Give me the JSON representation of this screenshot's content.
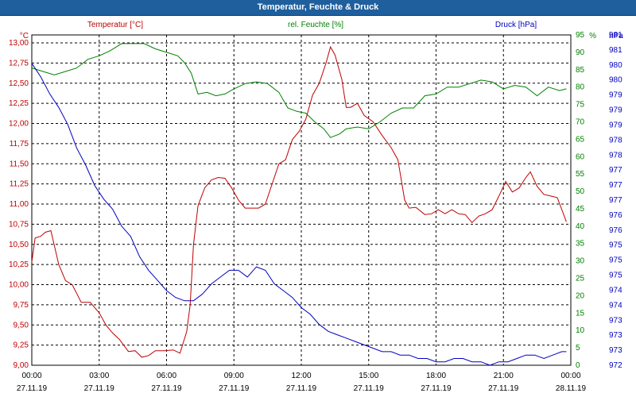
{
  "window": {
    "title": "Temperatur, Feuchte & Druck"
  },
  "chart_data": {
    "type": "line",
    "x_tick_times": [
      "00:00",
      "03:00",
      "06:00",
      "09:00",
      "12:00",
      "15:00",
      "18:00",
      "21:00",
      "00:00"
    ],
    "x_tick_dates": [
      "27.11.19",
      "27.11.19",
      "27.11.19",
      "27.11.19",
      "27.11.19",
      "27.11.19",
      "27.11.19",
      "27.11.19",
      "28.11.19"
    ],
    "xlim": [
      0,
      24
    ],
    "grid": true,
    "axes": {
      "temperature": {
        "label": "Temperatur [°C]",
        "unit": "°C",
        "color": "#c00000",
        "ylim": [
          9.0,
          13.0
        ],
        "ticks": [
          "13,00",
          "12,75",
          "12,50",
          "12,25",
          "12,00",
          "11,75",
          "11,50",
          "11,25",
          "11,00",
          "10,75",
          "10,50",
          "10,25",
          "10,00",
          "9,75",
          "9,50",
          "9,25",
          "9,00"
        ]
      },
      "humidity": {
        "label": "rel. Feuchte [%]",
        "unit": "%",
        "color": "#008000",
        "ylim": [
          0,
          95
        ],
        "ticks": [
          "0",
          "5",
          "10",
          "15",
          "20",
          "25",
          "30",
          "35",
          "40",
          "45",
          "50",
          "55",
          "60",
          "65",
          "70",
          "75",
          "80",
          "85",
          "90",
          "95"
        ]
      },
      "pressure": {
        "label": "Druck [hPa]",
        "unit": "hPa",
        "color": "#0000c0",
        "ticks": [
          "972",
          "973",
          "973",
          "973",
          "974",
          "974",
          "975",
          "975",
          "975",
          "976",
          "976",
          "977",
          "977",
          "977",
          "978",
          "978",
          "979",
          "979",
          "979",
          "980",
          "980",
          "981",
          "981"
        ]
      }
    },
    "series": [
      {
        "name": "Temperatur [°C]",
        "axis": "temperature",
        "color": "#c00000",
        "points": [
          [
            0,
            10.28
          ],
          [
            0.15,
            10.58
          ],
          [
            0.4,
            10.6
          ],
          [
            0.6,
            10.65
          ],
          [
            0.85,
            10.67
          ],
          [
            1.2,
            10.25
          ],
          [
            1.5,
            10.05
          ],
          [
            1.8,
            10.0
          ],
          [
            2.2,
            9.78
          ],
          [
            2.6,
            9.78
          ],
          [
            3.0,
            9.65
          ],
          [
            3.3,
            9.5
          ],
          [
            3.6,
            9.4
          ],
          [
            3.9,
            9.32
          ],
          [
            4.3,
            9.17
          ],
          [
            4.6,
            9.18
          ],
          [
            4.9,
            9.1
          ],
          [
            5.2,
            9.12
          ],
          [
            5.5,
            9.18
          ],
          [
            5.9,
            9.18
          ],
          [
            6.3,
            9.19
          ],
          [
            6.6,
            9.15
          ],
          [
            6.9,
            9.42
          ],
          [
            7.05,
            9.75
          ],
          [
            7.2,
            10.5
          ],
          [
            7.4,
            10.98
          ],
          [
            7.7,
            11.2
          ],
          [
            8.0,
            11.3
          ],
          [
            8.3,
            11.33
          ],
          [
            8.6,
            11.32
          ],
          [
            8.9,
            11.2
          ],
          [
            9.2,
            11.05
          ],
          [
            9.5,
            10.95
          ],
          [
            9.8,
            10.95
          ],
          [
            10.1,
            10.95
          ],
          [
            10.4,
            11.0
          ],
          [
            10.7,
            11.25
          ],
          [
            11.0,
            11.5
          ],
          [
            11.3,
            11.55
          ],
          [
            11.6,
            11.8
          ],
          [
            11.9,
            11.9
          ],
          [
            12.2,
            12.05
          ],
          [
            12.5,
            12.35
          ],
          [
            12.8,
            12.5
          ],
          [
            13.1,
            12.75
          ],
          [
            13.3,
            12.95
          ],
          [
            13.5,
            12.85
          ],
          [
            13.8,
            12.55
          ],
          [
            14.0,
            12.2
          ],
          [
            14.2,
            12.2
          ],
          [
            14.5,
            12.25
          ],
          [
            14.8,
            12.1
          ],
          [
            15.2,
            12.02
          ],
          [
            15.6,
            11.85
          ],
          [
            16.0,
            11.7
          ],
          [
            16.3,
            11.55
          ],
          [
            16.6,
            11.05
          ],
          [
            16.8,
            10.95
          ],
          [
            17.1,
            10.96
          ],
          [
            17.5,
            10.87
          ],
          [
            17.8,
            10.88
          ],
          [
            18.1,
            10.93
          ],
          [
            18.4,
            10.88
          ],
          [
            18.7,
            10.93
          ],
          [
            19.0,
            10.88
          ],
          [
            19.3,
            10.87
          ],
          [
            19.6,
            10.77
          ],
          [
            19.9,
            10.85
          ],
          [
            20.2,
            10.88
          ],
          [
            20.5,
            10.93
          ],
          [
            20.8,
            11.1
          ],
          [
            21.1,
            11.28
          ],
          [
            21.4,
            11.15
          ],
          [
            21.7,
            11.2
          ],
          [
            22.0,
            11.33
          ],
          [
            22.2,
            11.4
          ],
          [
            22.5,
            11.22
          ],
          [
            22.8,
            11.12
          ],
          [
            23.1,
            11.1
          ],
          [
            23.4,
            11.08
          ],
          [
            23.6,
            10.93
          ],
          [
            23.8,
            10.78
          ]
        ]
      },
      {
        "name": "rel. Feuchte [%]",
        "axis": "humidity",
        "color": "#008000",
        "points": [
          [
            0,
            85.5
          ],
          [
            0.5,
            84.5
          ],
          [
            1.0,
            83.5
          ],
          [
            1.5,
            84.5
          ],
          [
            2.0,
            85.5
          ],
          [
            2.5,
            88
          ],
          [
            3.0,
            89
          ],
          [
            3.5,
            90.5
          ],
          [
            4.0,
            92.5
          ],
          [
            4.5,
            92.5
          ],
          [
            5.0,
            92.5
          ],
          [
            5.5,
            91
          ],
          [
            6.0,
            90
          ],
          [
            6.5,
            89
          ],
          [
            6.8,
            87
          ],
          [
            7.1,
            84
          ],
          [
            7.4,
            78
          ],
          [
            7.8,
            78.5
          ],
          [
            8.2,
            77.5
          ],
          [
            8.6,
            78
          ],
          [
            9.0,
            79.5
          ],
          [
            9.5,
            81
          ],
          [
            10.0,
            81.5
          ],
          [
            10.5,
            81
          ],
          [
            11.0,
            78.5
          ],
          [
            11.4,
            74
          ],
          [
            11.8,
            73
          ],
          [
            12.2,
            72.5
          ],
          [
            12.6,
            70
          ],
          [
            13.0,
            68
          ],
          [
            13.3,
            65.5
          ],
          [
            13.7,
            66.5
          ],
          [
            14.0,
            68
          ],
          [
            14.5,
            68.5
          ],
          [
            15.0,
            68
          ],
          [
            15.5,
            70
          ],
          [
            16.0,
            72.5
          ],
          [
            16.5,
            74
          ],
          [
            17.0,
            74
          ],
          [
            17.5,
            77.5
          ],
          [
            18.0,
            78
          ],
          [
            18.5,
            80
          ],
          [
            19.0,
            80
          ],
          [
            19.5,
            81
          ],
          [
            20.0,
            82
          ],
          [
            20.5,
            81.5
          ],
          [
            21.0,
            79.5
          ],
          [
            21.5,
            80.5
          ],
          [
            22.0,
            80
          ],
          [
            22.5,
            77.5
          ],
          [
            23.0,
            80
          ],
          [
            23.5,
            79
          ],
          [
            23.8,
            79.5
          ]
        ]
      },
      {
        "name": "Druck [hPa]",
        "axis": "pressure",
        "color": "#0000c0",
        "points": [
          [
            0,
            980.9
          ],
          [
            0.4,
            980.5
          ],
          [
            0.8,
            980.0
          ],
          [
            1.2,
            979.6
          ],
          [
            1.6,
            979.1
          ],
          [
            2.0,
            978.4
          ],
          [
            2.4,
            977.9
          ],
          [
            2.8,
            977.3
          ],
          [
            3.2,
            976.9
          ],
          [
            3.6,
            976.6
          ],
          [
            4.0,
            976.1
          ],
          [
            4.4,
            975.8
          ],
          [
            4.8,
            975.2
          ],
          [
            5.2,
            974.8
          ],
          [
            5.6,
            974.5
          ],
          [
            6.0,
            974.2
          ],
          [
            6.4,
            974.0
          ],
          [
            6.8,
            973.9
          ],
          [
            7.2,
            973.9
          ],
          [
            7.6,
            974.1
          ],
          [
            8.0,
            974.4
          ],
          [
            8.4,
            974.6
          ],
          [
            8.8,
            974.8
          ],
          [
            9.2,
            974.8
          ],
          [
            9.6,
            974.6
          ],
          [
            10.0,
            974.9
          ],
          [
            10.4,
            974.8
          ],
          [
            10.8,
            974.4
          ],
          [
            11.2,
            974.2
          ],
          [
            11.6,
            974.0
          ],
          [
            12.0,
            973.7
          ],
          [
            12.4,
            973.5
          ],
          [
            12.8,
            973.2
          ],
          [
            13.2,
            973.0
          ],
          [
            13.6,
            972.9
          ],
          [
            14.0,
            972.8
          ],
          [
            14.4,
            972.7
          ],
          [
            14.8,
            972.6
          ],
          [
            15.2,
            972.5
          ],
          [
            15.6,
            972.4
          ],
          [
            16.0,
            972.4
          ],
          [
            16.4,
            972.3
          ],
          [
            16.8,
            972.3
          ],
          [
            17.2,
            972.2
          ],
          [
            17.6,
            972.2
          ],
          [
            18.0,
            972.1
          ],
          [
            18.4,
            972.1
          ],
          [
            18.8,
            972.2
          ],
          [
            19.2,
            972.2
          ],
          [
            19.6,
            972.1
          ],
          [
            20.0,
            972.1
          ],
          [
            20.4,
            972.0
          ],
          [
            20.8,
            972.1
          ],
          [
            21.2,
            972.1
          ],
          [
            21.6,
            972.2
          ],
          [
            22.0,
            972.3
          ],
          [
            22.4,
            972.3
          ],
          [
            22.8,
            972.2
          ],
          [
            23.2,
            972.3
          ],
          [
            23.6,
            972.4
          ],
          [
            23.8,
            972.4
          ]
        ]
      }
    ]
  }
}
